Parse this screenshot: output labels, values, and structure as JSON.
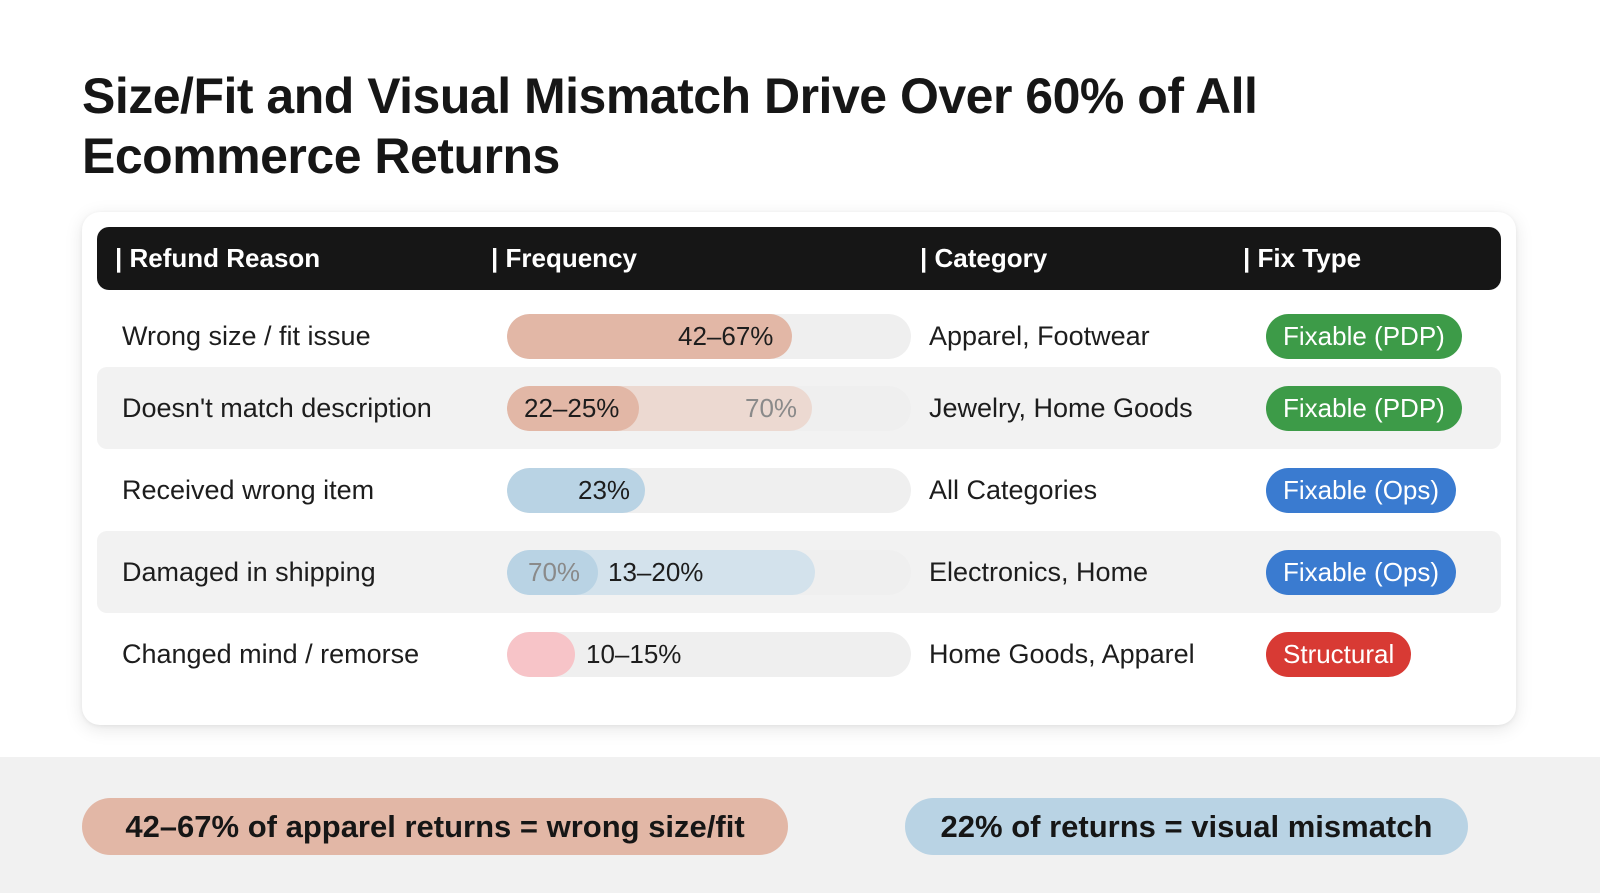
{
  "title": "Size/Fit and Visual Mismatch Drive Over 60% of All Ecommerce Returns",
  "colors": {
    "header_bg": "#161616",
    "size_fit": "#e2b7a6",
    "visual": "#b9d3e4",
    "remorse": "#f7c4c8",
    "fixable_pdp": "#3d9b48",
    "fixable_ops": "#3a7bd0",
    "structural": "#d83a34"
  },
  "table": {
    "headers": {
      "reason": "| Refund Reason",
      "frequency": "| Frequency",
      "category": "| Category",
      "fix_type": "| Fix Type"
    },
    "rows": [
      {
        "reason": "Wrong size / fit issue",
        "frequency": "42–67%",
        "frequency_fill_pct": 72,
        "category": "Apparel, Footwear",
        "fix_type": "Fixable (PDP)"
      },
      {
        "reason": "Doesn't match description",
        "frequency": "22–25%",
        "frequency_secondary": "70%",
        "frequency_fill_pct": 33,
        "frequency_secondary_fill_pct": 77,
        "category": "Jewelry, Home Goods",
        "fix_type": "Fixable (PDP)"
      },
      {
        "reason": "Received wrong item",
        "frequency": "23%",
        "frequency_fill_pct": 35,
        "category": "All Categories",
        "fix_type": "Fixable (Ops)"
      },
      {
        "reason": "Damaged in shipping",
        "frequency": "13–20%",
        "frequency_secondary": "70%",
        "frequency_fill_pct": 23,
        "frequency_secondary_fill_pct": 77,
        "category": "Electronics, Home",
        "fix_type": "Fixable (Ops)"
      },
      {
        "reason": "Changed mind / remorse",
        "frequency": "10–15%",
        "frequency_fill_pct": 17,
        "category": "Home Goods, Apparel",
        "fix_type": "Structural"
      }
    ]
  },
  "callouts": {
    "size_fit": "42–67% of apparel returns = wrong size/fit",
    "visual": "22% of returns = visual mismatch"
  }
}
